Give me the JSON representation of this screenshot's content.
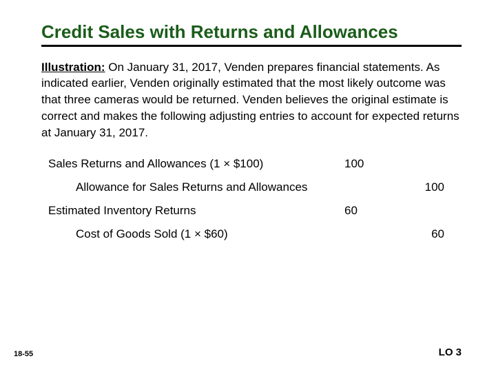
{
  "title_color": "#1a5c1a",
  "rule_color": "#000000",
  "background_color": "#ffffff",
  "title": "Credit Sales with Returns and Allowances",
  "illustration_lead": "Illustration:",
  "illustration_body": " On January 31, 2017, Venden prepares financial statements. As indicated earlier, Venden originally estimated that the most likely outcome was that three cameras would be returned. Venden believes the original estimate is correct and makes the following adjusting entries to account for expected returns at January 31, 2017.",
  "entries": [
    {
      "label": "Sales Returns and Allowances  (1 × $100)",
      "debit": "100",
      "credit": "",
      "indent": false
    },
    {
      "label": "Allowance for Sales Returns and Allowances",
      "debit": "",
      "credit": "100",
      "indent": true
    },
    {
      "label": "Estimated Inventory Returns",
      "debit": "60",
      "credit": "",
      "indent": false
    },
    {
      "label": "Cost of Goods Sold (1 × $60)",
      "debit": "",
      "credit": "60",
      "indent": true
    }
  ],
  "page_number": "18-55",
  "lo": "LO 3"
}
